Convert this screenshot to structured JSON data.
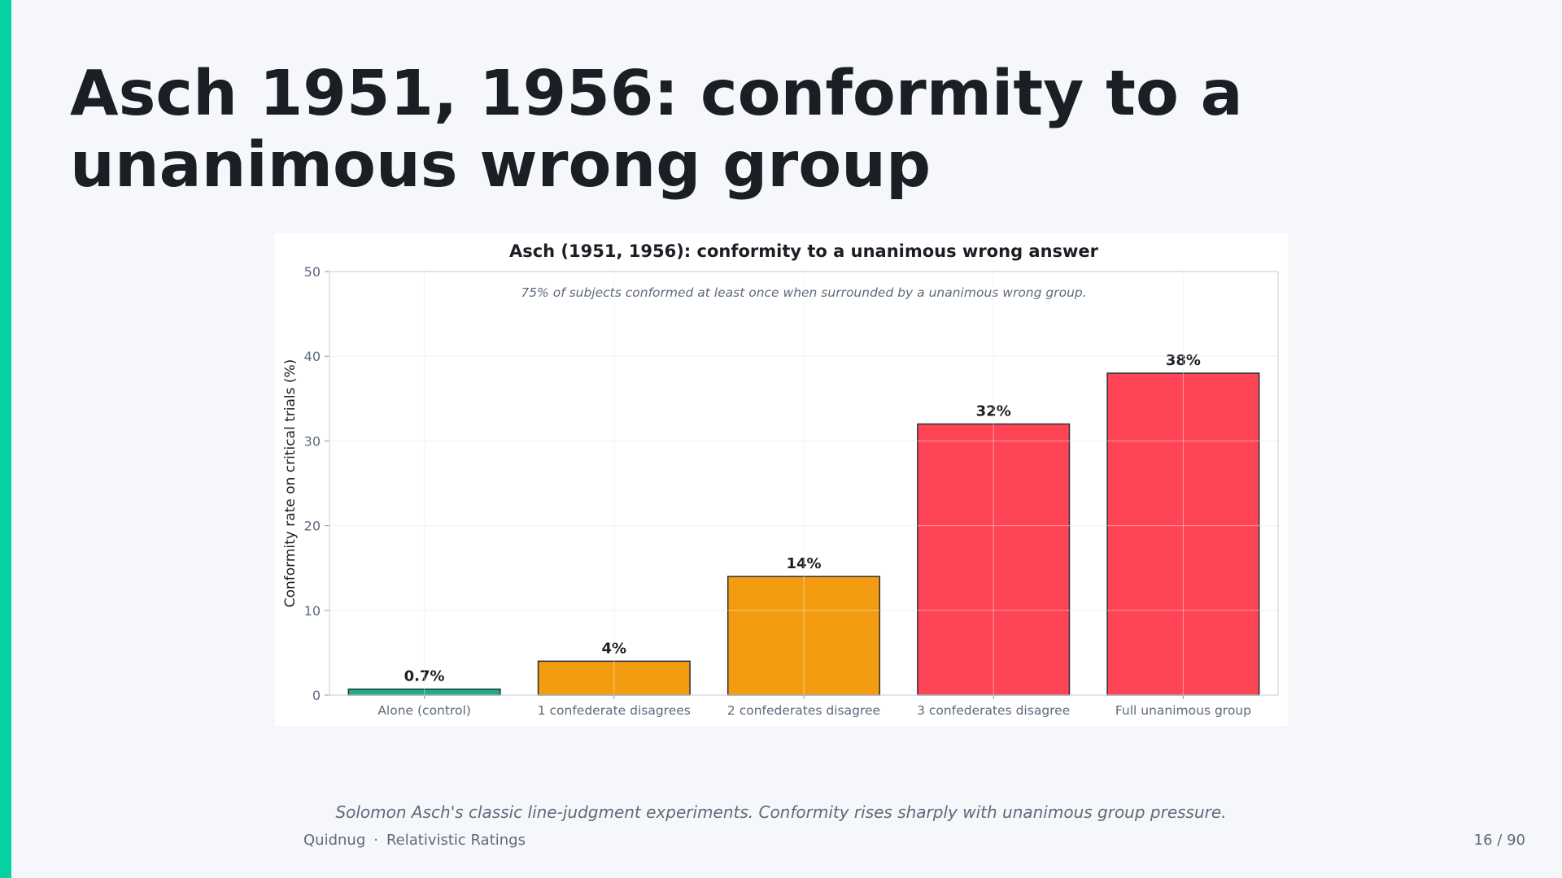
{
  "slide": {
    "title": "Asch 1951, 1956: conformity to a unanimous wrong group",
    "caption": "Solomon Asch's classic line-judgment experiments. Conformity rises sharply with unanimous group pressure.",
    "footer": {
      "author": "Quidnug",
      "separator": "·",
      "deck": "Relativistic Ratings",
      "page": "16 / 90"
    },
    "accent_color": "#07d1a0"
  },
  "chart_data": {
    "type": "bar",
    "title": "Asch (1951, 1956): conformity to a unanimous wrong answer",
    "annotation": "75% of subjects conformed at least once when surrounded by a unanimous wrong group.",
    "xlabel": "",
    "ylabel": "Conformity rate on critical trials (%)",
    "ylim": [
      0,
      50
    ],
    "yticks": [
      0,
      10,
      20,
      30,
      40,
      50
    ],
    "grid": true,
    "categories": [
      "Alone (control)",
      "1 confederate disagrees",
      "2 confederates disagree",
      "3 confederates disagree",
      "Full unanimous group"
    ],
    "values": [
      0.7,
      4,
      14,
      32,
      38
    ],
    "value_labels": [
      "0.7%",
      "4%",
      "14%",
      "32%",
      "38%"
    ],
    "colors": [
      "#1aae8a",
      "#f39c12",
      "#f39c12",
      "#ff4455",
      "#ff4455"
    ]
  }
}
